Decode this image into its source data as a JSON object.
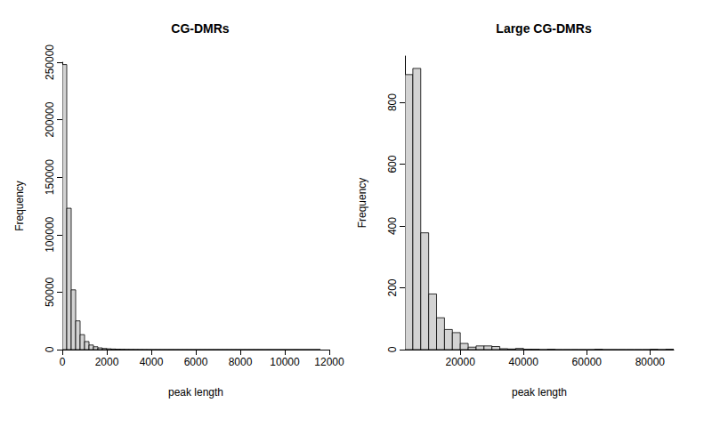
{
  "chart_data": [
    {
      "type": "histogram",
      "title": "CG-DMRs",
      "x_label": "peak length",
      "y_label": "Frequency",
      "bins": [
        0,
        200,
        400,
        600,
        800,
        1000,
        1200,
        1400,
        1600,
        1800,
        2000,
        2200,
        2400,
        2600,
        2800,
        3000,
        3200,
        3400,
        3600,
        3800,
        4000,
        4200,
        4400,
        4600,
        4800,
        5000,
        5200,
        5400,
        5600,
        5800,
        6000,
        6200,
        6400,
        6600,
        6800,
        7000,
        7200,
        7400,
        7600,
        7800,
        8000,
        8200,
        8400,
        8600,
        8800,
        9000,
        9200,
        9400,
        9600,
        9800,
        10000,
        10200,
        10400,
        10600,
        10800,
        11000,
        11200,
        11400,
        11600
      ],
      "values": [
        248000,
        123000,
        52000,
        25000,
        13000,
        7000,
        4000,
        2500,
        1500,
        1000,
        700,
        500,
        350,
        250,
        180,
        130,
        100,
        80,
        60,
        45,
        35,
        28,
        22,
        18,
        14,
        11,
        9,
        7,
        6,
        5,
        4,
        4,
        3,
        3,
        2,
        2,
        2,
        1,
        1,
        1,
        1,
        1,
        1,
        1,
        1,
        0,
        1,
        0,
        0,
        1,
        0,
        0,
        1,
        0,
        0,
        0,
        0,
        1
      ],
      "color": "#d3d3d3",
      "xlim": [
        0,
        12000
      ],
      "xticks": [
        0,
        2000,
        4000,
        6000,
        8000,
        10000,
        12000
      ],
      "ylim": [
        0,
        250000
      ],
      "yticks": [
        0,
        50000,
        100000,
        150000,
        200000,
        250000
      ],
      "grid": false
    },
    {
      "type": "histogram",
      "title": "Large CG-DMRs",
      "x_label": "peak length",
      "y_label": "Frequency",
      "bins": [
        2500,
        5000,
        7500,
        10000,
        12500,
        15000,
        17500,
        20000,
        22500,
        25000,
        27500,
        30000,
        32500,
        35000,
        37500,
        40000,
        42500,
        45000,
        47500,
        50000,
        52500,
        55000,
        57500,
        60000,
        62500,
        65000,
        67500,
        70000,
        72500,
        75000,
        77500,
        80000,
        82500,
        85000,
        87500
      ],
      "values": [
        890,
        910,
        378,
        180,
        103,
        65,
        55,
        20,
        8,
        12,
        12,
        10,
        3,
        2,
        4,
        1,
        1,
        0,
        1,
        0,
        0,
        0,
        0,
        0,
        1,
        0,
        0,
        0,
        0,
        0,
        0,
        1,
        0,
        1
      ],
      "color": "#d3d3d3",
      "xlim": [
        2500,
        87500
      ],
      "xticks": [
        20000,
        40000,
        60000,
        80000
      ],
      "ylim": [
        0,
        950
      ],
      "yticks": [
        0,
        200,
        400,
        600,
        800
      ],
      "grid": false
    }
  ]
}
